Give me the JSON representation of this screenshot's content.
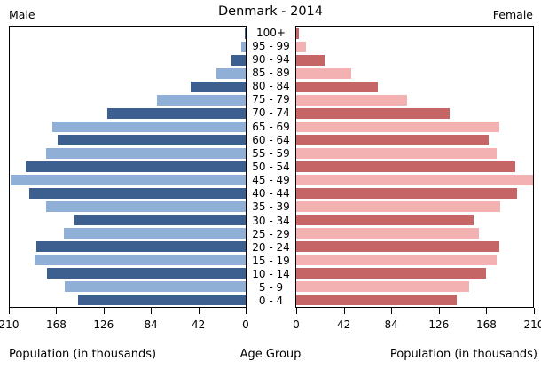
{
  "title": "Denmark - 2014",
  "left_header": "Male",
  "right_header": "Female",
  "footer": {
    "left_axis_label": "Population (in thousands)",
    "center_axis_label": "Age Group",
    "right_axis_label": "Population (in thousands)"
  },
  "colors": {
    "male_dark": "#3d5f8f",
    "male_light": "#8fafd6",
    "female_dark": "#c56565",
    "female_light": "#f4b1b1",
    "axis_line": "#000000",
    "background": "#ffffff"
  },
  "chart_data": {
    "type": "bar",
    "subtype": "population-pyramid",
    "title": "Denmark - 2014",
    "units": "thousands",
    "grid": false,
    "xlim": [
      0,
      210
    ],
    "x_ticks_male_left_to_right": [
      "210",
      "168",
      "126",
      "84",
      "42",
      "0"
    ],
    "x_ticks_female_left_to_right": [
      "0",
      "42",
      "84",
      "126",
      "168",
      "210"
    ],
    "categories_top_to_bottom": [
      "100+",
      "95 - 99",
      "90 - 94",
      "85 - 89",
      "80 - 84",
      "75 - 79",
      "70 - 74",
      "65 - 69",
      "60 - 64",
      "55 - 59",
      "50 - 54",
      "45 - 49",
      "40 - 44",
      "35 - 39",
      "30 - 34",
      "25 - 29",
      "20 - 24",
      "15 - 19",
      "10 - 14",
      "5 - 9",
      "0 - 4"
    ],
    "series": [
      {
        "name": "Male",
        "side": "left",
        "values": [
          1,
          4,
          13,
          26,
          49,
          79,
          123,
          172,
          167,
          178,
          196,
          209,
          193,
          178,
          152,
          162,
          186,
          188,
          177,
          161,
          149
        ]
      },
      {
        "name": "Female",
        "side": "right",
        "values": [
          2,
          9,
          25,
          49,
          72,
          98,
          136,
          180,
          171,
          178,
          194,
          211,
          196,
          181,
          157,
          162,
          180,
          178,
          168,
          153,
          142
        ]
      }
    ]
  }
}
